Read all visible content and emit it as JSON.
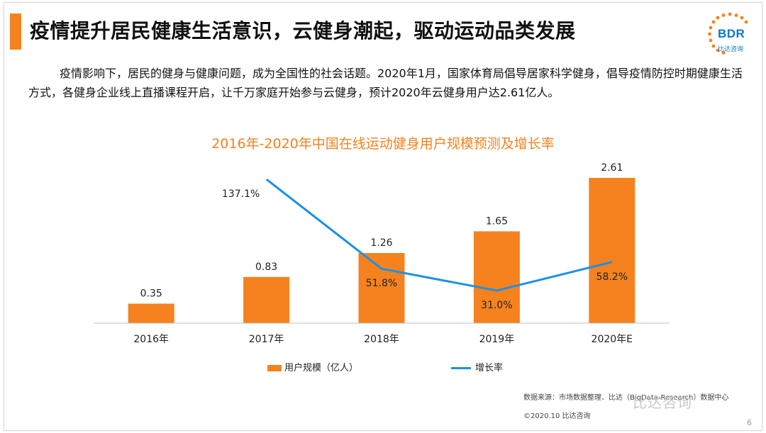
{
  "slide": {
    "title": "疫情提升居民健康生活意识，云健身潮起，驱动运动品类发展",
    "intro": "疫情影响下，居民的健身与健康问题，成为全国性的社会话题。2020年1月，国家体育局倡导居家科学健身，倡导疫情防控时期健康生活方式，各健身企业线上直播课程开启，让千万家庭开始参与云健身，预计2020年云健身用户达2.61亿人。",
    "logo_text": "BDR",
    "logo_sub": "比达咨询",
    "source": "数据来源：市场数据整理、比达（BigData-Research）数据中心",
    "copyright": "©2020.10 比达咨询",
    "watermark": "比达咨询",
    "page_number": "6"
  },
  "colors": {
    "accent": "#f5821f",
    "bar": "#f5821f",
    "line": "#1e90e6",
    "logo": "#0a78c8"
  },
  "chart_data": {
    "type": "bar",
    "title": "2016年-2020年中国在线运动健身用户规模预测及增长率",
    "categories": [
      "2016年",
      "2017年",
      "2018年",
      "2019年",
      "2020年E"
    ],
    "series": [
      {
        "name": "用户规模（亿人）",
        "type": "bar",
        "values": [
          0.35,
          0.83,
          1.26,
          1.65,
          2.61
        ],
        "labels": [
          "0.35",
          "0.83",
          "1.26",
          "1.65",
          "2.61"
        ]
      },
      {
        "name": "增长率",
        "type": "line",
        "values": [
          null,
          137.1,
          51.8,
          31.0,
          58.2
        ],
        "labels": [
          "",
          "137.1%",
          "51.8%",
          "31.0%",
          "58.2%"
        ]
      }
    ],
    "xlabel": "",
    "ylabel": "",
    "legend_position": "bottom"
  }
}
